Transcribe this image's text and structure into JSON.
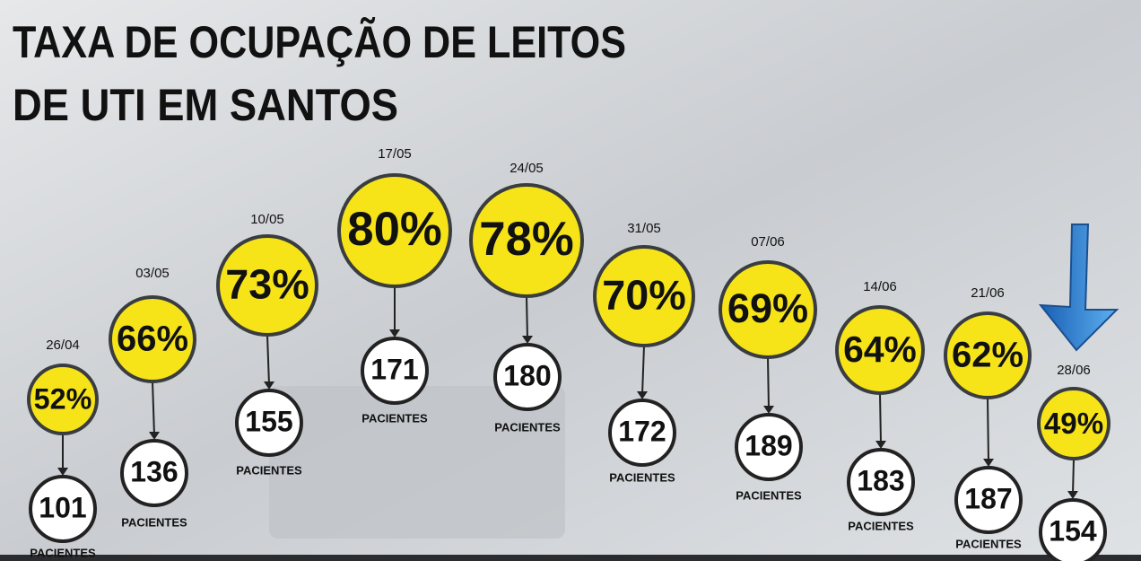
{
  "header": {
    "title_lines": [
      "TAXA DE OCUPAÇÃO DE LEITOS",
      "DE UTI EM SANTOS"
    ]
  },
  "patients_label": "PACIENTES",
  "items": [
    {
      "date": "26/04",
      "occupancy": "52%",
      "patients": 101
    },
    {
      "date": "03/05",
      "occupancy": "66%",
      "patients": 136
    },
    {
      "date": "10/05",
      "occupancy": "73%",
      "patients": 155
    },
    {
      "date": "17/05",
      "occupancy": "80%",
      "patients": 171
    },
    {
      "date": "24/05",
      "occupancy": "78%",
      "patients": 180
    },
    {
      "date": "31/05",
      "occupancy": "70%",
      "patients": 172
    },
    {
      "date": "07/06",
      "occupancy": "69%",
      "patients": 189
    },
    {
      "date": "14/06",
      "occupancy": "64%",
      "patients": 183
    },
    {
      "date": "21/06",
      "occupancy": "62%",
      "patients": 187
    },
    {
      "date": "28/06",
      "occupancy": "49%",
      "patients": 154
    }
  ]
}
